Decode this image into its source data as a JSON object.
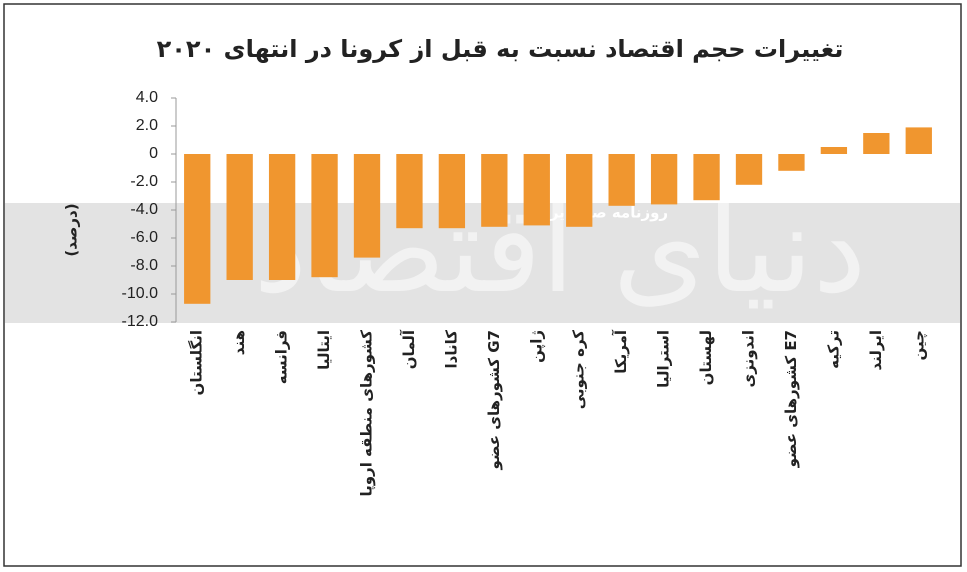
{
  "chart_data": {
    "type": "bar",
    "title": "تغییرات حجم اقتصاد نسبت به قبل از کرونا در انتهای ۲۰۲۰",
    "ylabel": "(درصد)",
    "watermark": [
      "روزنامه صبح ایران",
      "دنیای اقتصاد"
    ],
    "categories": [
      "انگلستان",
      "هند",
      "فرانسه",
      "ایتالیا",
      "کشورهای منطقه اروپا",
      "آلمان",
      "کانادا",
      "کشورهای عضو G7",
      "ژاپن",
      "کره جنوبی",
      "آمریکا",
      "استرالیا",
      "لهستان",
      "اندونزی",
      "کشورهای عضو E7",
      "ترکیه",
      "ایرلند",
      "چین"
    ],
    "values": [
      -10.7,
      -9.0,
      -9.0,
      -8.8,
      -7.4,
      -5.3,
      -5.3,
      -5.2,
      -5.1,
      -5.2,
      -3.7,
      -3.6,
      -3.3,
      -2.2,
      -1.2,
      0.5,
      1.5,
      1.9
    ],
    "color": "#f0962f",
    "ylim": [
      -12,
      4
    ],
    "yticks": [
      {
        "value": 4,
        "label": "4.0"
      },
      {
        "value": 2,
        "label": "2.0"
      },
      0,
      {
        "value": -2,
        "label": "-2.0"
      },
      {
        "value": -4,
        "label": "-4.0"
      },
      {
        "value": -6,
        "label": "-6.0"
      },
      {
        "value": -8,
        "label": "-8.0"
      },
      {
        "value": -10,
        "label": "-10.0"
      },
      {
        "value": -12,
        "label": "-12.0"
      }
    ],
    "grid": false
  }
}
